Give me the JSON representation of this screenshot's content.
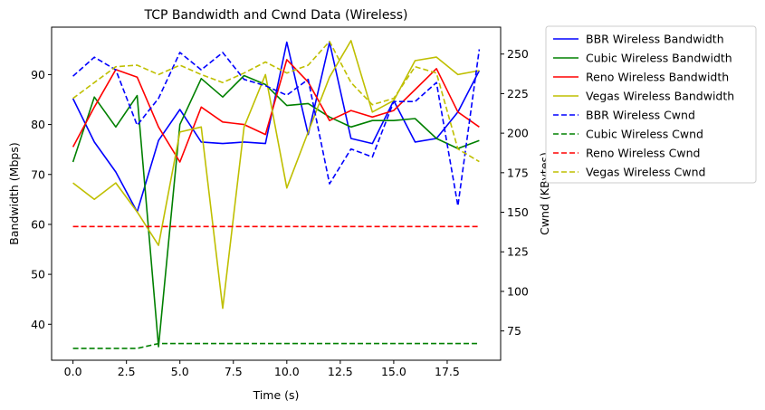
{
  "chart_data": {
    "type": "line",
    "title": "TCP Bandwidth and Cwnd Data (Wireless)",
    "xlabel": "Time (s)",
    "ylabel_left": "Bandwidth (Mbps)",
    "ylabel_right": "Cwnd (KBytes)",
    "x": [
      0,
      1,
      2,
      3,
      4,
      5,
      6,
      7,
      8,
      9,
      10,
      11,
      12,
      13,
      14,
      15,
      16,
      17,
      18,
      19
    ],
    "xlim": [
      -1.0,
      20.0
    ],
    "ylim_left": [
      32.8,
      99.5
    ],
    "ylim_right": [
      56.5,
      267.0
    ],
    "xticks": [
      0.0,
      2.5,
      5.0,
      7.5,
      10.0,
      12.5,
      15.0,
      17.5
    ],
    "xtick_labels": [
      "0.0",
      "2.5",
      "5.0",
      "7.5",
      "10.0",
      "12.5",
      "15.0",
      "17.5"
    ],
    "yticks_left": [
      40,
      50,
      60,
      70,
      80,
      90
    ],
    "yticks_right": [
      75,
      100,
      125,
      150,
      175,
      200,
      225,
      250
    ],
    "grid": false,
    "legend_position": "outside-right-top",
    "series": [
      {
        "name": "BBR Wireless Bandwidth",
        "axis": "left",
        "style": "solid",
        "color": "#0000ff",
        "values": [
          85.2,
          76.5,
          70.5,
          62.5,
          76.8,
          83.0,
          76.5,
          76.2,
          76.5,
          76.2,
          96.5,
          78.0,
          96.5,
          77.2,
          76.2,
          84.8,
          76.5,
          77.2,
          82.5,
          90.8
        ]
      },
      {
        "name": "Cubic Wireless Bandwidth",
        "axis": "left",
        "style": "solid",
        "color": "#008000",
        "values": [
          72.5,
          85.5,
          79.5,
          85.8,
          35.5,
          80.0,
          89.2,
          85.5,
          89.8,
          88.0,
          83.8,
          84.2,
          81.5,
          79.5,
          80.8,
          80.8,
          81.2,
          77.2,
          75.2,
          76.8
        ]
      },
      {
        "name": "Reno Wireless Bandwidth",
        "axis": "left",
        "style": "solid",
        "color": "#ff0000",
        "values": [
          75.5,
          83.5,
          91.0,
          89.5,
          79.5,
          72.5,
          83.5,
          80.5,
          80.0,
          78.0,
          93.0,
          88.5,
          80.8,
          82.8,
          81.5,
          82.8,
          87.0,
          91.2,
          82.5,
          79.5
        ]
      },
      {
        "name": "Vegas Wireless Bandwidth",
        "axis": "left",
        "style": "solid",
        "color": "#bfbf00",
        "values": [
          68.3,
          65.0,
          68.3,
          62.5,
          55.8,
          78.5,
          79.5,
          43.2,
          79.5,
          90.0,
          67.3,
          78.5,
          89.5,
          96.8,
          82.5,
          84.8,
          92.8,
          93.5,
          90.0,
          90.8
        ]
      },
      {
        "name": "BBR Wireless Cwnd",
        "axis": "right",
        "style": "dashed",
        "color": "#0000ff",
        "values": [
          236,
          248,
          240,
          205,
          222,
          251,
          240,
          251,
          234,
          230,
          224,
          234,
          168,
          190,
          185,
          220,
          220,
          232,
          154,
          253
        ]
      },
      {
        "name": "Cubic Wireless Cwnd",
        "axis": "right",
        "style": "dashed",
        "color": "#008000",
        "values": [
          64,
          64,
          64,
          64,
          67,
          67,
          67,
          67,
          67,
          67,
          67,
          67,
          67,
          67,
          67,
          67,
          67,
          67,
          67,
          67
        ]
      },
      {
        "name": "Reno Wireless Cwnd",
        "axis": "right",
        "style": "dashed",
        "color": "#ff0000",
        "values": [
          141,
          141,
          141,
          141,
          141,
          141,
          141,
          141,
          141,
          141,
          141,
          141,
          141,
          141,
          141,
          141,
          141,
          141,
          141,
          141
        ]
      },
      {
        "name": "Vegas Wireless Cwnd",
        "axis": "right",
        "style": "dashed",
        "color": "#bfbf00",
        "values": [
          222,
          232,
          242,
          243,
          237,
          243,
          237,
          232,
          238,
          245,
          238,
          243,
          258,
          232,
          218,
          222,
          242,
          238,
          190,
          182
        ]
      }
    ]
  }
}
